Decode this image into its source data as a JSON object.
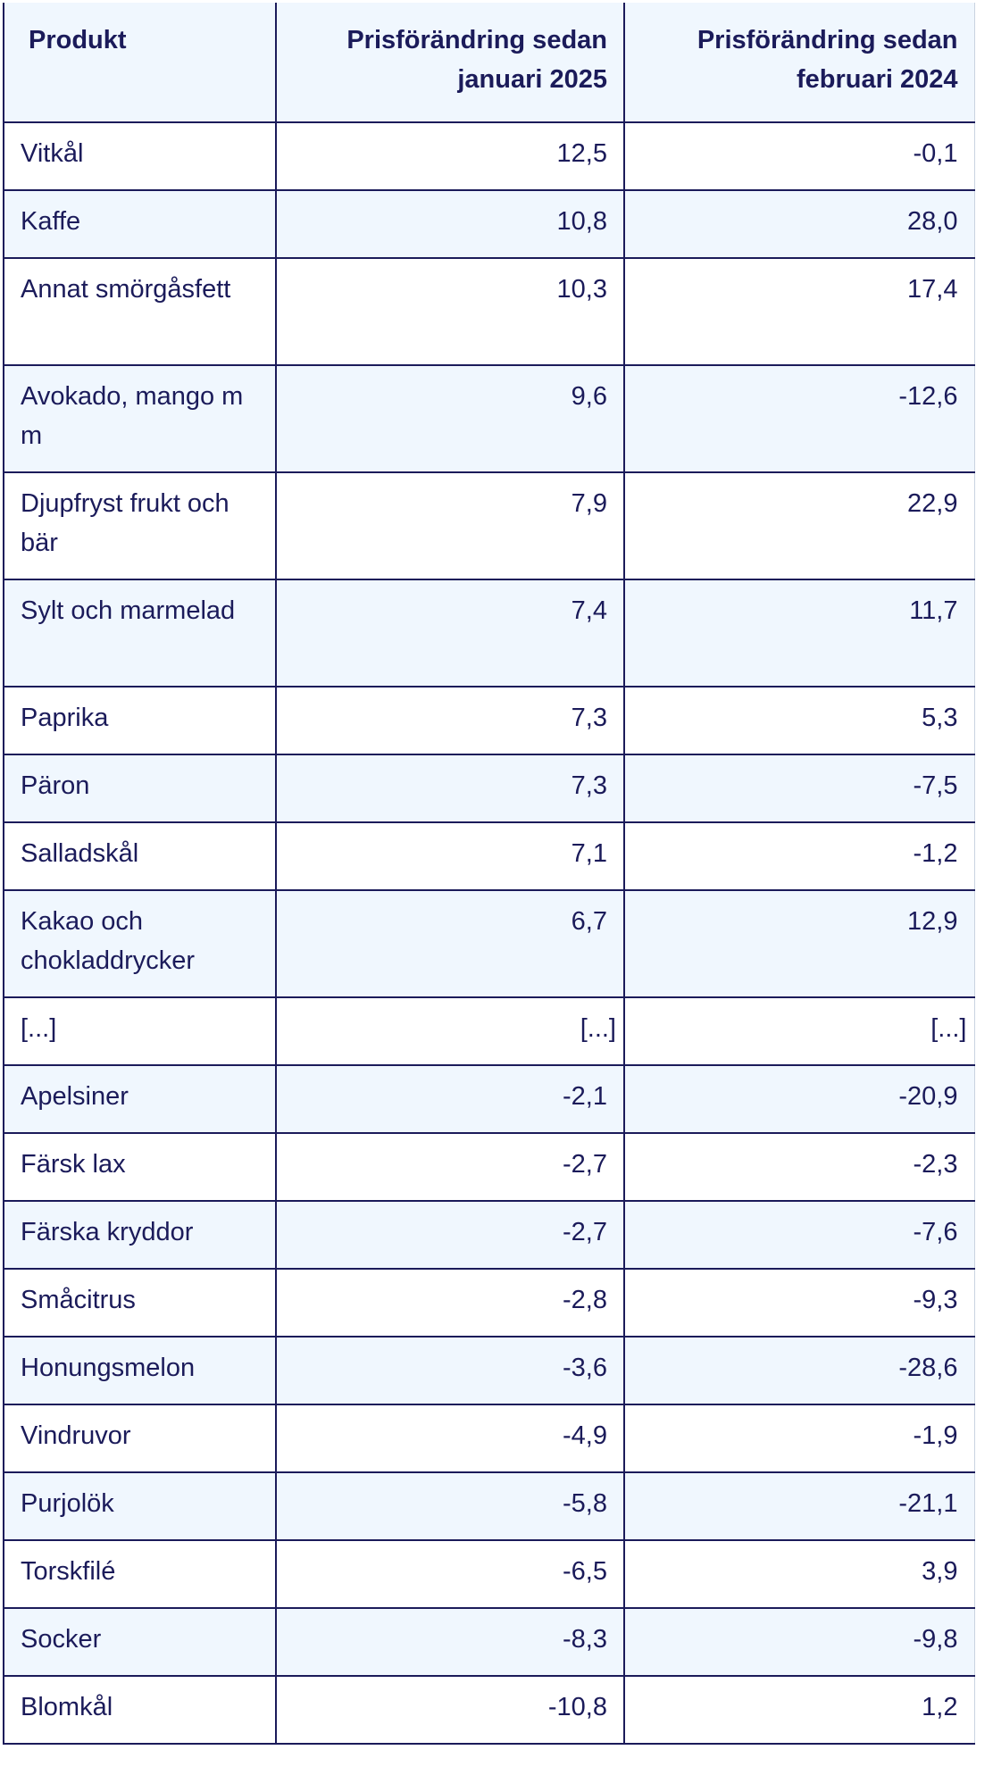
{
  "table": {
    "headers": [
      "Produkt",
      "Prisförändring sedan januari 2025",
      "Prisförändring sedan februari 2024"
    ],
    "rows": [
      [
        "Vitkål",
        "12,5",
        "-0,1"
      ],
      [
        "Kaffe",
        "10,8",
        "28,0"
      ],
      [
        "Annat smörgåsfett",
        "10,3",
        "17,4"
      ],
      [
        "Avokado, mango m m",
        "9,6",
        "-12,6"
      ],
      [
        "Djupfryst frukt och bär",
        "7,9",
        "22,9"
      ],
      [
        "Sylt och marmelad",
        "7,4",
        "11,7"
      ],
      [
        "Paprika",
        "7,3",
        "5,3"
      ],
      [
        "Päron",
        "7,3",
        "-7,5"
      ],
      [
        "Salladskål",
        "7,1",
        "-1,2"
      ],
      [
        "Kakao och chokladdrycker",
        "6,7",
        "12,9"
      ],
      [
        "[...]",
        "[...]",
        "[...]"
      ],
      [
        "Apelsiner",
        "-2,1",
        "-20,9"
      ],
      [
        "Färsk lax",
        "-2,7",
        "-2,3"
      ],
      [
        "Färska kryddor",
        "-2,7",
        "-7,6"
      ],
      [
        "Småcitrus",
        "-2,8",
        "-9,3"
      ],
      [
        "Honungsmelon",
        "-3,6",
        "-28,6"
      ],
      [
        "Vindruvor",
        "-4,9",
        "-1,9"
      ],
      [
        "Purjolök",
        "-5,8",
        "-21,1"
      ],
      [
        "Torskfilé",
        "-6,5",
        "3,9"
      ],
      [
        "Socker",
        "-8,3",
        "-9,8"
      ],
      [
        "Blomkål",
        "-10,8",
        "1,2"
      ]
    ]
  }
}
